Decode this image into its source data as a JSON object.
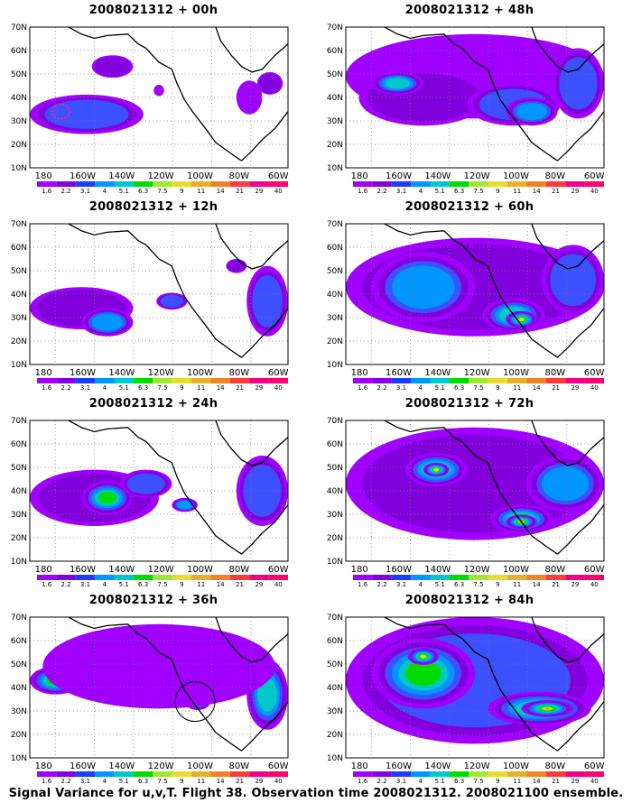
{
  "footer": "Signal Variance for u,v,T. Flight 38. Observation time 2008021312. 2008021100 ensemble.",
  "lat_labels": [
    "70N",
    "60N",
    "50N",
    "40N",
    "30N",
    "20N",
    "10N"
  ],
  "lon_labels": [
    "180",
    "160W",
    "140W",
    "120W",
    "100W",
    "80W",
    "60W"
  ],
  "colorbar": {
    "labels": [
      "1.6",
      "2.2",
      "3.1",
      "4",
      "5.1",
      "6.3",
      "7.5",
      "9",
      "11",
      "14",
      "21",
      "29",
      "40"
    ],
    "colors": [
      "#a000ff",
      "#8200dc",
      "#1e3cff",
      "#0096ff",
      "#00c8c8",
      "#00dc00",
      "#a0e632",
      "#e6dc32",
      "#e6af2d",
      "#f08228",
      "#fa3c3c",
      "#f00082",
      "#ff0070"
    ]
  },
  "panels": [
    {
      "title": "2008021312 + 00h"
    },
    {
      "title": "2008021312 + 48h"
    },
    {
      "title": "2008021312 + 12h"
    },
    {
      "title": "2008021312 + 60h"
    },
    {
      "title": "2008021312 + 24h"
    },
    {
      "title": "2008021312 + 72h"
    },
    {
      "title": "2008021312 + 36h"
    },
    {
      "title": "2008021312 + 84h"
    }
  ]
}
